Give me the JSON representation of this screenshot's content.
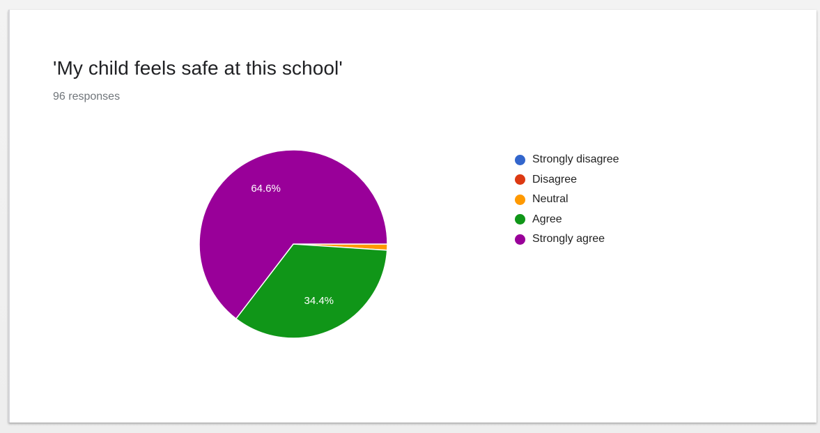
{
  "card": {
    "title": "'My child feels safe at this school'",
    "responses": "96 responses"
  },
  "chart_data": {
    "type": "pie",
    "title": "'My child feels safe at this school'",
    "total_responses": 96,
    "categories": [
      "Strongly disagree",
      "Disagree",
      "Neutral",
      "Agree",
      "Strongly agree"
    ],
    "values": [
      0,
      0,
      1,
      33,
      62
    ],
    "percentages": [
      0.0,
      0.0,
      1.0,
      34.4,
      64.6
    ],
    "slice_labels": [
      "",
      "",
      "",
      "34.4%",
      "64.6%"
    ],
    "colors": [
      "#3366cc",
      "#dc3912",
      "#ff9900",
      "#109618",
      "#990099"
    ],
    "legend_position": "right"
  }
}
